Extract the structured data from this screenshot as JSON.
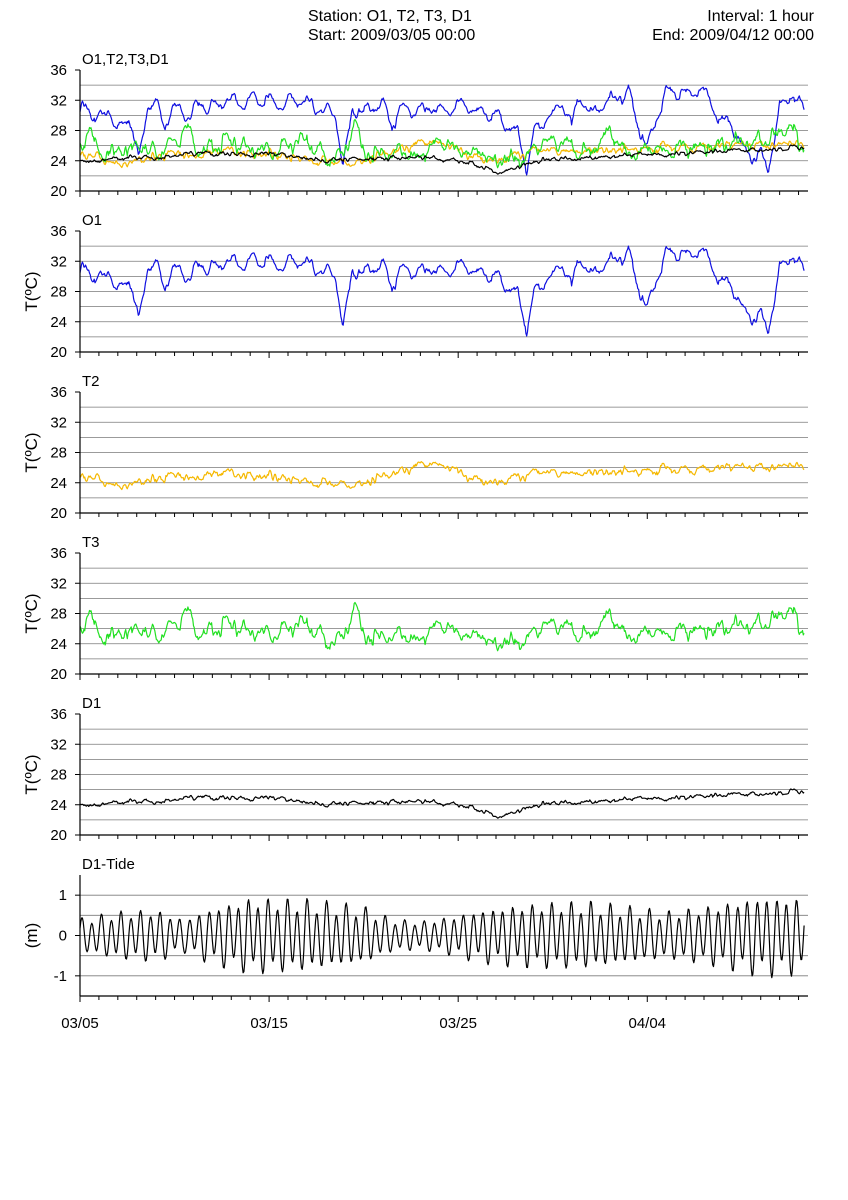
{
  "header": {
    "station": "Station: O1, T2, T3, D1",
    "start": "Start: 2009/03/05 00:00",
    "interval": "Interval: 1 hour",
    "end": "End: 2009/04/12 00:00"
  },
  "colors": {
    "O1": "#1010e0",
    "T2": "#f5b800",
    "T3": "#22e022",
    "D1": "#000000",
    "grid": "#7a7a7a"
  },
  "chart_data": [
    {
      "type": "line",
      "id": "combined",
      "title": "O1,T2,T3,D1",
      "ylabel": "",
      "ylim": [
        20,
        36
      ],
      "yticks": [
        20,
        24,
        28,
        32,
        36
      ],
      "series": [
        {
          "name": "O1",
          "color": "#1010e0",
          "x": [
            0,
            0.3,
            0.9,
            1.5,
            2,
            2.6,
            3.1,
            3.6,
            4,
            4.5,
            5,
            5.8,
            6.3,
            7,
            7.8,
            8.5,
            9.3,
            10,
            10.5,
            11,
            12,
            13,
            13.5,
            13.9,
            14.4,
            15,
            16,
            16.5,
            17,
            18,
            19,
            19.5,
            20,
            21,
            21.5,
            22,
            22.6,
            23.1,
            23.6,
            24,
            25,
            25.5,
            26,
            26.4,
            27,
            28,
            29,
            30,
            31,
            32,
            33,
            33.3,
            33.8,
            34.5,
            35,
            35.5,
            36,
            36.4,
            37,
            37.7,
            38.3
          ],
          "y": [
            30,
            31.5,
            29.5,
            30.8,
            27.8,
            30.5,
            23.8,
            31.8,
            31.6,
            28.8,
            31,
            30,
            31.6,
            31,
            32,
            31.5,
            32.3,
            32,
            31,
            32.2,
            31.7,
            30.5,
            30.4,
            23,
            31,
            30.5,
            31.5,
            28.7,
            31,
            30.5,
            31,
            30.8,
            31.4,
            30.7,
            30.2,
            29.8,
            28.6,
            28,
            23,
            27.5,
            30.5,
            31.5,
            28.5,
            32.5,
            30.2,
            32,
            33,
            25.5,
            33.5,
            33,
            33.3,
            32,
            29.5,
            28.5,
            26,
            24.5,
            25,
            22.5,
            31,
            33,
            30.2
          ]
        },
        {
          "name": "T2",
          "color": "#f5b800",
          "x": [
            0,
            1,
            2,
            3,
            4,
            5,
            6,
            7,
            8,
            9,
            10,
            11,
            12,
            13,
            14,
            15,
            16,
            17,
            18,
            19,
            20,
            21,
            22,
            23,
            24,
            25,
            26,
            27,
            28,
            29,
            30,
            31,
            32,
            33,
            34,
            35,
            36,
            37,
            38,
            38.3
          ],
          "y": [
            25,
            24.5,
            23.5,
            24,
            24.5,
            25,
            24.5,
            25,
            25.5,
            24.8,
            25,
            24.5,
            24,
            24,
            23.5,
            24,
            25,
            25.5,
            26,
            26.5,
            25.5,
            24.2,
            24,
            24.5,
            25.2,
            25.5,
            25,
            25.5,
            25.3,
            25.6,
            25.4,
            26,
            25.5,
            25.8,
            26,
            26,
            26,
            26.2,
            26.5,
            26
          ]
        },
        {
          "name": "T3",
          "color": "#22e022",
          "x": [
            0,
            0.5,
            1,
            2,
            2.5,
            3,
            4,
            5,
            5.7,
            6,
            7,
            8,
            9,
            10,
            11,
            12,
            13,
            14,
            14.5,
            15,
            16,
            17,
            18,
            19,
            20,
            21,
            22,
            23,
            24,
            25,
            26,
            27,
            28,
            29,
            30,
            31,
            32,
            33,
            34,
            35,
            36,
            37,
            37.5,
            38,
            38.3
          ],
          "y": [
            26,
            28,
            25,
            25,
            25.5,
            26,
            25,
            26,
            29,
            26,
            25.5,
            27,
            25.5,
            25.5,
            26,
            27,
            24,
            25,
            28.8,
            25,
            25,
            25.5,
            24.3,
            27,
            25,
            25.5,
            24,
            24,
            25.5,
            27,
            26,
            25,
            28.5,
            24.5,
            25.5,
            25.5,
            25.5,
            26,
            26,
            26.5,
            27,
            27.5,
            29.5,
            26,
            25.5
          ]
        },
        {
          "name": "D1",
          "color": "#000000",
          "x": [
            0,
            1,
            2,
            3,
            4,
            5,
            6,
            7,
            8,
            9,
            10,
            11,
            12,
            13,
            14,
            15,
            16,
            17,
            18,
            19,
            20,
            21,
            22,
            23,
            24,
            25,
            26,
            27,
            28,
            29,
            30,
            31,
            32,
            33,
            34,
            35,
            36,
            37,
            38,
            38.3
          ],
          "y": [
            24,
            24,
            24.3,
            24.5,
            24.3,
            24.8,
            25,
            25,
            25,
            24.8,
            25,
            24.7,
            24.2,
            24,
            24.3,
            24.3,
            24.2,
            24.5,
            24.5,
            24.3,
            24,
            23.5,
            22.5,
            23,
            24,
            24.3,
            24.2,
            24.5,
            24.6,
            24.8,
            25,
            24.8,
            25,
            25.1,
            25.3,
            25.3,
            25.4,
            25.6,
            25.7,
            25.8
          ]
        }
      ]
    },
    {
      "type": "line",
      "id": "o1",
      "title": "O1",
      "ylabel": "T(ºC)",
      "ylim": [
        20,
        36
      ],
      "yticks": [
        20,
        24,
        28,
        32,
        36
      ],
      "series": [
        {
          "name": "O1",
          "color": "#1010e0",
          "x": [
            0,
            0.3,
            0.9,
            1.5,
            2,
            2.6,
            3.1,
            3.6,
            4,
            4.5,
            5,
            5.8,
            6.3,
            7,
            7.8,
            8.5,
            9.3,
            10,
            10.5,
            11,
            12,
            13,
            13.5,
            13.9,
            14.4,
            15,
            16,
            16.5,
            17,
            18,
            19,
            19.5,
            20,
            21,
            21.5,
            22,
            22.6,
            23.1,
            23.6,
            24,
            25,
            25.5,
            26,
            26.4,
            27,
            28,
            29,
            30,
            31,
            32,
            33,
            33.3,
            33.8,
            34.5,
            35,
            35.5,
            36,
            36.4,
            37,
            37.7,
            38.3
          ],
          "y": [
            30,
            31.5,
            29.5,
            30.8,
            27.8,
            30.5,
            23.8,
            31.8,
            31.6,
            28.8,
            31,
            30,
            31.6,
            31,
            32,
            31.5,
            32.3,
            32,
            31,
            32.2,
            31.7,
            30.5,
            30.4,
            23,
            31,
            30.5,
            31.5,
            28.7,
            31,
            30.5,
            31,
            30.8,
            31.4,
            30.7,
            30.2,
            29.8,
            28.6,
            28,
            23,
            27.5,
            30.5,
            31.5,
            28.5,
            32.5,
            30.2,
            32,
            33,
            25.5,
            33.5,
            33,
            33.3,
            32,
            29.5,
            28.5,
            26,
            24.5,
            25,
            22.5,
            31,
            33,
            30.2
          ]
        }
      ]
    },
    {
      "type": "line",
      "id": "t2",
      "title": "T2",
      "ylabel": "T(ºC)",
      "ylim": [
        20,
        36
      ],
      "yticks": [
        20,
        24,
        28,
        32,
        36
      ],
      "series": [
        {
          "name": "T2",
          "color": "#f5b800",
          "x": [
            0,
            1,
            2,
            3,
            4,
            5,
            6,
            7,
            8,
            9,
            10,
            11,
            12,
            13,
            14,
            15,
            16,
            17,
            18,
            19,
            20,
            21,
            22,
            23,
            24,
            25,
            26,
            27,
            28,
            29,
            30,
            31,
            32,
            33,
            34,
            35,
            36,
            37,
            38,
            38.3
          ],
          "y": [
            25,
            24.5,
            23.5,
            24,
            24.5,
            25,
            24.5,
            25,
            25.5,
            24.8,
            25,
            24.5,
            24,
            24,
            23.5,
            24,
            25,
            25.5,
            26,
            26.5,
            25.5,
            24.2,
            24,
            24.5,
            25.2,
            25.5,
            25,
            25.5,
            25.3,
            25.6,
            25.4,
            26,
            25.5,
            25.8,
            26,
            26,
            26,
            26.2,
            26.5,
            26
          ]
        }
      ]
    },
    {
      "type": "line",
      "id": "t3",
      "title": "T3",
      "ylabel": "T(ºC)",
      "ylim": [
        20,
        36
      ],
      "yticks": [
        20,
        24,
        28,
        32,
        36
      ],
      "series": [
        {
          "name": "T3",
          "color": "#22e022",
          "x": [
            0,
            0.5,
            1,
            2,
            2.5,
            3,
            4,
            5,
            5.7,
            6,
            7,
            8,
            9,
            10,
            11,
            12,
            13,
            14,
            14.5,
            15,
            16,
            17,
            18,
            19,
            20,
            21,
            22,
            23,
            24,
            25,
            26,
            27,
            28,
            29,
            30,
            31,
            32,
            33,
            34,
            35,
            36,
            37,
            37.5,
            38,
            38.3
          ],
          "y": [
            26,
            28,
            25,
            25,
            25.5,
            26,
            25,
            26,
            29,
            26,
            25.5,
            27,
            25.5,
            25.5,
            26,
            27,
            24,
            25,
            28.8,
            25,
            25,
            25.5,
            24.3,
            27,
            25,
            25.5,
            24,
            24,
            25.5,
            27,
            26,
            25,
            28.5,
            24.5,
            25.5,
            25.5,
            25.5,
            26,
            26,
            26.5,
            27,
            27.5,
            29.5,
            26,
            25.5
          ]
        }
      ]
    },
    {
      "type": "line",
      "id": "d1",
      "title": "D1",
      "ylabel": "T(ºC)",
      "ylim": [
        20,
        36
      ],
      "yticks": [
        20,
        24,
        28,
        32,
        36
      ],
      "series": [
        {
          "name": "D1",
          "color": "#000000",
          "x": [
            0,
            1,
            2,
            3,
            4,
            5,
            6,
            7,
            8,
            9,
            10,
            11,
            12,
            13,
            14,
            15,
            16,
            17,
            18,
            19,
            20,
            21,
            22,
            23,
            24,
            25,
            26,
            27,
            28,
            29,
            30,
            31,
            32,
            33,
            34,
            35,
            36,
            37,
            38,
            38.3
          ],
          "y": [
            24,
            24,
            24.3,
            24.5,
            24.3,
            24.8,
            25,
            25,
            25,
            24.8,
            25,
            24.7,
            24.2,
            24,
            24.3,
            24.3,
            24.2,
            24.5,
            24.5,
            24.3,
            24,
            23.5,
            22.5,
            23,
            24,
            24.3,
            24.2,
            24.5,
            24.6,
            24.8,
            25,
            24.8,
            25,
            25.1,
            25.3,
            25.3,
            25.4,
            25.6,
            25.7,
            25.8
          ]
        }
      ]
    },
    {
      "type": "line",
      "id": "tide",
      "title": "D1-Tide",
      "ylabel": "(m)",
      "ylim": [
        -1.5,
        1.5
      ],
      "yticks": [
        -1,
        0,
        1
      ],
      "grid_lines": [
        -1,
        -0.5,
        0,
        0.5,
        1
      ],
      "xlabels": [
        "03/05",
        "03/15",
        "03/25",
        "04/04"
      ],
      "xticks_days": [
        0,
        10,
        20,
        30
      ],
      "xlim_days": [
        0,
        38.5
      ],
      "series": [
        {
          "name": "D1-Tide",
          "color": "#000000",
          "type": "semidiurnal_tide",
          "period_days": 0.5175,
          "amplitude_x": [
            0,
            2,
            4,
            5.5,
            7,
            9,
            12,
            15,
            16.5,
            18,
            19.5,
            21,
            23,
            25,
            27,
            29,
            31,
            33,
            36,
            38.3
          ],
          "amplitude_y": [
            0.35,
            0.5,
            0.55,
            0.35,
            0.6,
            0.8,
            0.75,
            0.6,
            0.35,
            0.3,
            0.4,
            0.55,
            0.65,
            0.7,
            0.7,
            0.6,
            0.5,
            0.6,
            0.85,
            0.8
          ]
        }
      ]
    }
  ]
}
